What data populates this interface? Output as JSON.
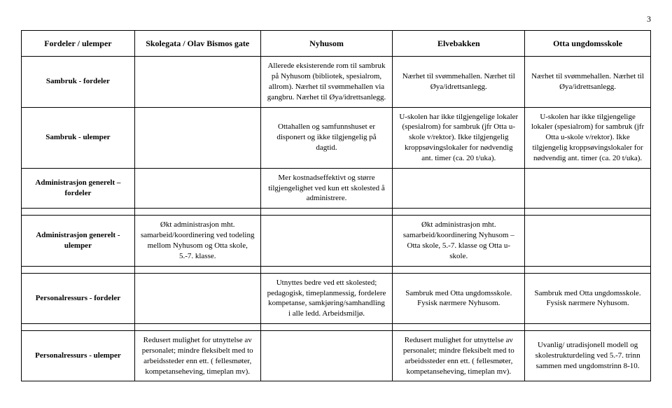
{
  "page_number": "3",
  "headers": [
    "Fordeler / ulemper",
    "Skolegata / Olav Bismos gate",
    "Nyhusom",
    "Elvebakken",
    "Otta ungdomsskole"
  ],
  "rows": [
    {
      "label": "Sambruk - fordeler",
      "cells": [
        "",
        "Allerede eksisterende rom til sambruk på Nyhusom (bibliotek, spesialrom, allrom). Nærhet til svømmehallen via gangbru. Nærhet til Øya/idrettsanlegg.",
        "Nærhet til svømmehallen. Nærhet til Øya/idrettsanlegg.",
        "Nærhet til svømmehallen. Nærhet til Øya/idrettsanlegg."
      ]
    },
    {
      "label": "Sambruk - ulemper",
      "cells": [
        "",
        "Ottahallen og samfunnshuset er disponert og ikke tilgjengelig på dagtid.",
        "U-skolen har ikke tilgjengelige lokaler (spesialrom) for sambruk (jfr Otta u-skole v/rektor). Ikke tilgjengelig kroppsøvingslokaler for nødvendig ant. timer (ca. 20 t/uka).",
        "U-skolen har ikke tilgjengelige lokaler (spesialrom) for sambruk (jfr Otta u-skole v/rektor). Ikke tilgjengelig kroppsøvingslokaler for nødvendig ant. timer (ca. 20 t/uka)."
      ]
    },
    {
      "label": "Administrasjon generelt – fordeler",
      "cells": [
        "",
        "Mer kostnadseffektivt og større tilgjengelighet ved kun ett skolested å administrere.",
        "",
        ""
      ]
    },
    {
      "label": "Administrasjon generelt - ulemper",
      "cells": [
        "Økt administrasjon mht. samarbeid/koordinering ved todeling mellom Nyhusom og Otta skole, 5.-7. klasse.",
        "",
        "Økt administrasjon mht. samarbeid/koordinering Nyhusom – Otta skole, 5.-7. klasse og Otta u-skole.",
        ""
      ]
    },
    {
      "label": "Personalressurs - fordeler",
      "cells": [
        "",
        "Utnyttes bedre ved ett skolested; pedagogisk, timeplanmessig, fordelere kompetanse, samkjøring/samhandling i alle ledd. Arbeidsmiljø.",
        "Sambruk med Otta ungdomsskole. Fysisk nærmere Nyhusom.",
        "Sambruk med Otta ungdomsskole. Fysisk nærmere Nyhusom."
      ]
    },
    {
      "label": "Personalressurs - ulemper",
      "cells": [
        "Redusert mulighet for utnyttelse av personalet; mindre fleksibelt med to arbeidssteder enn ett. ( fellesmøter, kompetanseheving, timeplan mv).",
        "",
        "Redusert mulighet for utnyttelse av personalet; mindre fleksibelt med to arbeidssteder enn ett. ( fellesmøter, kompetanseheving, timeplan mv).",
        "Uvanlig/ utradisjonell modell og skolestrukturdeling ved 5.-7. trinn sammen med ungdomstrinn 8-10."
      ]
    }
  ]
}
